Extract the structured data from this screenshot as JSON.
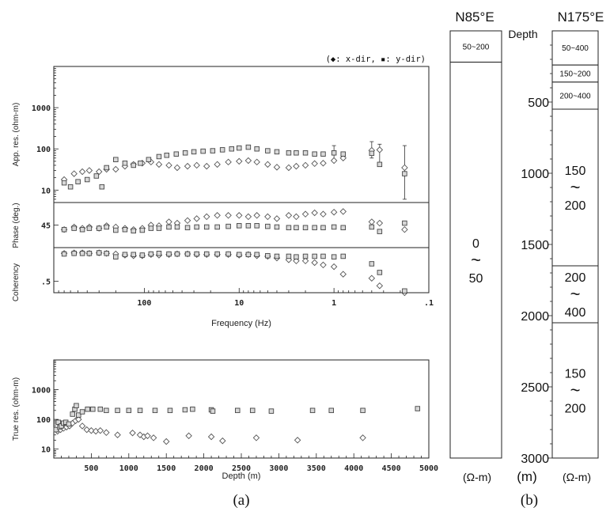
{
  "legend_note": "(◆: x-dir, ▪: y-dir)",
  "panel_a": {
    "label": "(a)",
    "freq_axis_label": "Frequency (Hz)",
    "freq_tick_labels": [
      "100",
      "10",
      "1",
      ".1"
    ],
    "depth_axis_label": "Depth (m)",
    "depth_tick_labels": [
      "500",
      "1000",
      "1500",
      "2000",
      "2500",
      "3000",
      "3500",
      "4000",
      "4500",
      "5000"
    ]
  },
  "panel_b": {
    "label": "(b)",
    "col1_title": "N85°E",
    "col2_title": "N175°E",
    "depth_header": "Depth",
    "depth_unit": "(m)",
    "col1_unit": "(Ω-m)",
    "col2_unit": "(Ω-m)",
    "tilde": "~",
    "depth_ticks": [
      {
        "depth": 500,
        "label": "500"
      },
      {
        "depth": 1000,
        "label": "1000"
      },
      {
        "depth": 1500,
        "label": "1500"
      },
      {
        "depth": 2000,
        "label": "2000"
      },
      {
        "depth": 2500,
        "label": "2500"
      },
      {
        "depth": 3000,
        "label": "3000"
      }
    ]
  },
  "chart_data": [
    {
      "id": "app_res",
      "type": "scatter",
      "ylabel": "App. res. (ohm-m)",
      "y_scale": "log",
      "ytick_labels": [
        "1000",
        "100",
        "10"
      ],
      "x_scale": "log-reversed",
      "xlim": [
        900,
        0.1
      ],
      "ylim": [
        5,
        10000
      ],
      "series": [
        {
          "name": "x-dir",
          "marker": "diamond",
          "x": [
            700,
            550,
            450,
            380,
            300,
            250,
            200,
            160,
            130,
            105,
            85,
            70,
            55,
            45,
            35,
            28,
            22,
            17,
            13,
            10,
            8,
            6.5,
            5,
            4,
            3,
            2.5,
            2,
            1.6,
            1.3,
            1,
            0.8,
            0.4,
            0.33,
            0.18
          ],
          "y": [
            18,
            25,
            28,
            30,
            28,
            32,
            32,
            38,
            42,
            45,
            48,
            42,
            40,
            35,
            38,
            40,
            38,
            42,
            48,
            50,
            52,
            48,
            42,
            36,
            35,
            38,
            40,
            44,
            45,
            52,
            60,
            92,
            95,
            35
          ]
        },
        {
          "name": "y-dir",
          "marker": "square",
          "x": [
            700,
            600,
            500,
            400,
            320,
            280,
            250,
            200,
            160,
            130,
            110,
            90,
            70,
            58,
            46,
            37,
            30,
            24,
            19,
            15,
            12,
            10,
            8,
            6.5,
            5,
            4,
            3,
            2.5,
            2,
            1.6,
            1.3,
            1,
            0.8,
            0.4,
            0.33,
            0.18
          ],
          "y": [
            15,
            12,
            16,
            18,
            22,
            12,
            35,
            55,
            45,
            40,
            45,
            55,
            65,
            70,
            75,
            80,
            85,
            88,
            90,
            95,
            100,
            105,
            110,
            100,
            90,
            85,
            80,
            80,
            80,
            75,
            75,
            80,
            75,
            78,
            42,
            25
          ]
        }
      ]
    },
    {
      "id": "phase",
      "type": "scatter",
      "ylabel": "Phase (deg.)",
      "ytick_labels": [
        "45"
      ],
      "x_scale": "log-reversed",
      "xlim": [
        900,
        0.1
      ],
      "ylim": [
        10,
        80
      ],
      "series": [
        {
          "name": "x-dir",
          "marker": "diamond",
          "x": [
            700,
            550,
            450,
            380,
            300,
            250,
            200,
            160,
            130,
            105,
            85,
            70,
            55,
            45,
            35,
            28,
            22,
            17,
            13,
            10,
            8,
            6.5,
            5,
            4,
            3,
            2.5,
            2,
            1.6,
            1.3,
            1,
            0.8,
            0.4,
            0.33,
            0.18
          ],
          "y": [
            38,
            42,
            40,
            42,
            40,
            44,
            42,
            40,
            38,
            40,
            45,
            44,
            50,
            48,
            52,
            55,
            58,
            60,
            60,
            60,
            58,
            60,
            58,
            55,
            60,
            58,
            62,
            64,
            62,
            65,
            66,
            50,
            48,
            38
          ]
        },
        {
          "name": "y-dir",
          "marker": "square",
          "x": [
            700,
            550,
            450,
            380,
            300,
            250,
            200,
            160,
            130,
            105,
            85,
            70,
            55,
            45,
            35,
            28,
            22,
            17,
            13,
            10,
            8,
            6.5,
            5,
            4,
            3,
            2.5,
            2,
            1.6,
            1.3,
            1,
            0.8,
            0.4,
            0.33,
            0.18
          ],
          "y": [
            38,
            40,
            38,
            40,
            40,
            42,
            37,
            38,
            36,
            37,
            40,
            40,
            42,
            42,
            41,
            42,
            42,
            42,
            43,
            44,
            44,
            44,
            43,
            42,
            41,
            41,
            41,
            41,
            41,
            42,
            41,
            42,
            35,
            48
          ]
        }
      ]
    },
    {
      "id": "coherency",
      "type": "scatter",
      "ylabel": "Coherency",
      "ytick_labels": [
        ".5"
      ],
      "x_scale": "log-reversed",
      "xlim": [
        900,
        0.1
      ],
      "ylim": [
        0.3,
        1.08
      ],
      "series": [
        {
          "name": "x-dir",
          "marker": "diamond",
          "x": [
            700,
            550,
            450,
            380,
            300,
            250,
            200,
            160,
            130,
            105,
            85,
            70,
            55,
            45,
            35,
            28,
            22,
            17,
            13,
            10,
            8,
            6.5,
            5,
            4,
            3,
            2.5,
            2,
            1.6,
            1.3,
            1,
            0.8,
            0.4,
            0.33,
            0.18
          ],
          "y": [
            0.98,
            0.99,
            0.99,
            0.98,
            0.99,
            0.98,
            0.97,
            0.95,
            0.94,
            0.94,
            0.96,
            0.95,
            0.96,
            0.97,
            0.97,
            0.96,
            0.96,
            0.96,
            0.96,
            0.95,
            0.96,
            0.94,
            0.93,
            0.9,
            0.87,
            0.85,
            0.85,
            0.82,
            0.78,
            0.75,
            0.62,
            0.55,
            0.42,
            0.3
          ]
        },
        {
          "name": "y-dir",
          "marker": "square",
          "x": [
            700,
            550,
            450,
            380,
            300,
            250,
            200,
            160,
            130,
            105,
            85,
            70,
            55,
            45,
            35,
            28,
            22,
            17,
            13,
            10,
            8,
            6.5,
            5,
            4,
            3,
            2.5,
            2,
            1.6,
            1.3,
            1,
            0.8,
            0.4,
            0.33,
            0.18
          ],
          "y": [
            0.97,
            0.98,
            0.98,
            0.98,
            0.99,
            0.98,
            0.92,
            0.96,
            0.96,
            0.95,
            0.97,
            0.98,
            0.97,
            0.97,
            0.97,
            0.97,
            0.97,
            0.97,
            0.97,
            0.96,
            0.96,
            0.96,
            0.94,
            0.93,
            0.93,
            0.92,
            0.93,
            0.93,
            0.93,
            0.92,
            0.93,
            0.8,
            0.65,
            0.33
          ]
        }
      ]
    },
    {
      "id": "true_res",
      "type": "scatter",
      "ylabel": "True res. (ohm-m)",
      "y_scale": "log",
      "ytick_labels": [
        "1000",
        "100",
        "10"
      ],
      "x_scale": "linear",
      "xlim": [
        0,
        5000
      ],
      "ylim": [
        5,
        10000
      ],
      "series": [
        {
          "name": "x-dir",
          "marker": "diamond",
          "x": [
            50,
            90,
            130,
            170,
            210,
            250,
            290,
            330,
            380,
            440,
            500,
            560,
            620,
            700,
            850,
            1050,
            1150,
            1200,
            1250,
            1330,
            1500,
            1800,
            2100,
            2250,
            2700,
            3250,
            4120
          ],
          "y": [
            40,
            45,
            50,
            55,
            60,
            75,
            90,
            100,
            60,
            45,
            42,
            40,
            42,
            36,
            30,
            35,
            30,
            26,
            28,
            24,
            18,
            28,
            26,
            19,
            24,
            20,
            24
          ]
        },
        {
          "name": "y-dir",
          "marker": "square",
          "x": [
            30,
            60,
            80,
            100,
            130,
            160,
            200,
            250,
            280,
            300,
            330,
            380,
            450,
            520,
            620,
            700,
            850,
            1000,
            1150,
            1350,
            1550,
            1750,
            1850,
            2100,
            2120,
            2450,
            2650,
            2900,
            3450,
            3700,
            4120,
            4850
          ],
          "y": [
            45,
            80,
            55,
            60,
            75,
            80,
            70,
            150,
            220,
            290,
            140,
            180,
            220,
            220,
            220,
            200,
            200,
            200,
            200,
            200,
            200,
            210,
            220,
            210,
            190,
            200,
            200,
            190,
            200,
            200,
            200,
            230
          ]
        }
      ]
    },
    {
      "id": "column_n85e",
      "type": "table",
      "title": "N85°E",
      "layers": [
        {
          "top": 0,
          "bottom": 220,
          "resistivity": "50~200",
          "res_low": "",
          "res_high": ""
        },
        {
          "top": 220,
          "bottom": 3000,
          "resistivity": "",
          "res_low": "0",
          "res_high": "50"
        }
      ]
    },
    {
      "id": "column_n175e",
      "type": "table",
      "title": "N175°E",
      "layers": [
        {
          "top": 0,
          "bottom": 240,
          "resistivity": "50~400",
          "res_low": "",
          "res_high": ""
        },
        {
          "top": 240,
          "bottom": 360,
          "resistivity": "150~200",
          "res_low": "",
          "res_high": ""
        },
        {
          "top": 360,
          "bottom": 550,
          "resistivity": "200~400",
          "res_low": "",
          "res_high": ""
        },
        {
          "top": 550,
          "bottom": 1650,
          "resistivity": "",
          "res_low": "150",
          "res_high": "200"
        },
        {
          "top": 1650,
          "bottom": 2050,
          "resistivity": "",
          "res_low": "200",
          "res_high": "400"
        },
        {
          "top": 2050,
          "bottom": 3000,
          "resistivity": "",
          "res_low": "150",
          "res_high": "200"
        }
      ]
    }
  ]
}
